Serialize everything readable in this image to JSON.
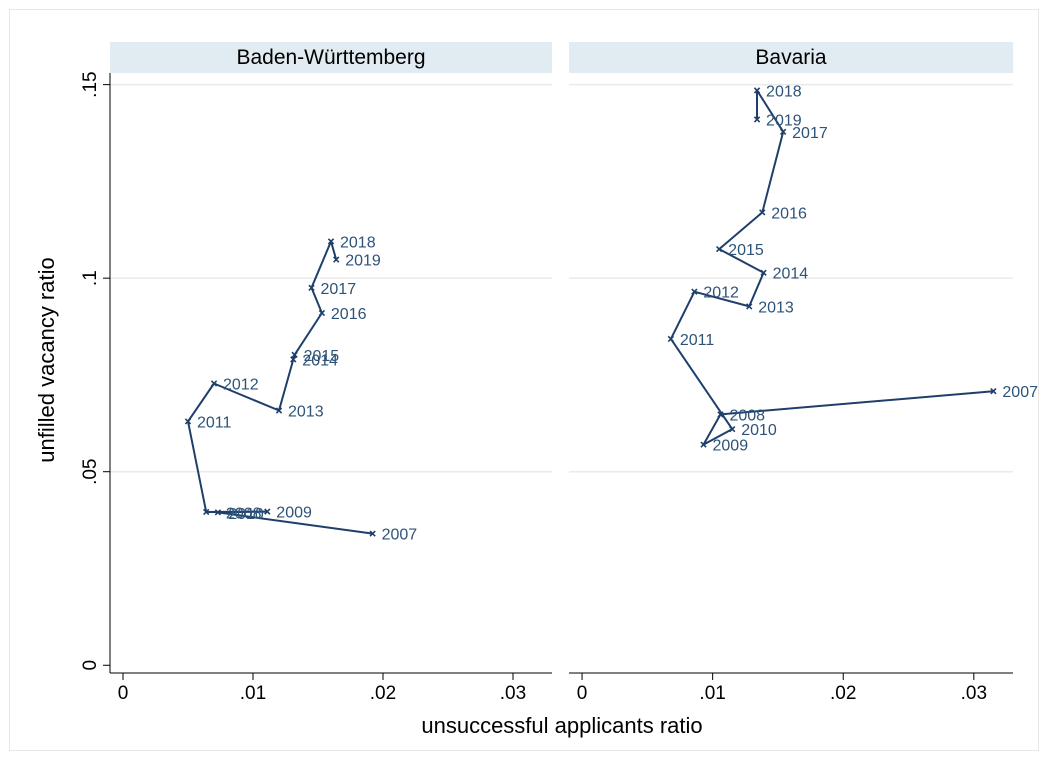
{
  "chart_data": {
    "type": "line",
    "xlabel": "unsuccessful applicants ratio",
    "ylabel": "unfilled vacancy ratio",
    "xlim": [
      -0.001,
      0.033
    ],
    "ylim": [
      -0.002,
      0.153
    ],
    "xticks": [
      0,
      0.01,
      0.02,
      0.03
    ],
    "xtick_labels": [
      "0",
      ".01",
      ".02",
      ".03"
    ],
    "yticks": [
      0,
      0.05,
      0.1,
      0.15
    ],
    "ytick_labels": [
      "0",
      ".05",
      ".1",
      ".15"
    ],
    "grid": true,
    "marker": "x",
    "colors": {
      "line": "#1f3f6b",
      "label": "#2e5378",
      "strip": "#e1ebf2",
      "frame": "#000000"
    },
    "panels": [
      {
        "title": "Baden-Württemberg",
        "points": [
          {
            "label": "2007",
            "x": 0.0192,
            "y": 0.034
          },
          {
            "label": "2008",
            "x": 0.0073,
            "y": 0.0395
          },
          {
            "label": "2009",
            "x": 0.0111,
            "y": 0.0397
          },
          {
            "label": "2010",
            "x": 0.0064,
            "y": 0.0396
          },
          {
            "label": "2011",
            "x": 0.005,
            "y": 0.063
          },
          {
            "label": "2012",
            "x": 0.007,
            "y": 0.0728
          },
          {
            "label": "2013",
            "x": 0.012,
            "y": 0.0658
          },
          {
            "label": "2014",
            "x": 0.0131,
            "y": 0.079
          },
          {
            "label": "2015",
            "x": 0.0132,
            "y": 0.0802
          },
          {
            "label": "2016",
            "x": 0.0153,
            "y": 0.091
          },
          {
            "label": "2017",
            "x": 0.0145,
            "y": 0.0975
          },
          {
            "label": "2018",
            "x": 0.016,
            "y": 0.1095
          },
          {
            "label": "2019",
            "x": 0.0164,
            "y": 0.1048
          }
        ]
      },
      {
        "title": "Bavaria",
        "points": [
          {
            "label": "2007",
            "x": 0.0315,
            "y": 0.0708
          },
          {
            "label": "2008",
            "x": 0.0106,
            "y": 0.0648
          },
          {
            "label": "2009",
            "x": 0.0093,
            "y": 0.057
          },
          {
            "label": "2010",
            "x": 0.0115,
            "y": 0.061
          },
          {
            "label": "2011",
            "x": 0.0068,
            "y": 0.0843
          },
          {
            "label": "2012",
            "x": 0.0086,
            "y": 0.0965
          },
          {
            "label": "2013",
            "x": 0.0128,
            "y": 0.0927
          },
          {
            "label": "2014",
            "x": 0.0139,
            "y": 0.1014
          },
          {
            "label": "2015",
            "x": 0.0105,
            "y": 0.1075
          },
          {
            "label": "2016",
            "x": 0.0138,
            "y": 0.117
          },
          {
            "label": "2017",
            "x": 0.0154,
            "y": 0.1378
          },
          {
            "label": "2018",
            "x": 0.0134,
            "y": 0.1485
          },
          {
            "label": "2019",
            "x": 0.0134,
            "y": 0.141
          }
        ]
      }
    ]
  }
}
